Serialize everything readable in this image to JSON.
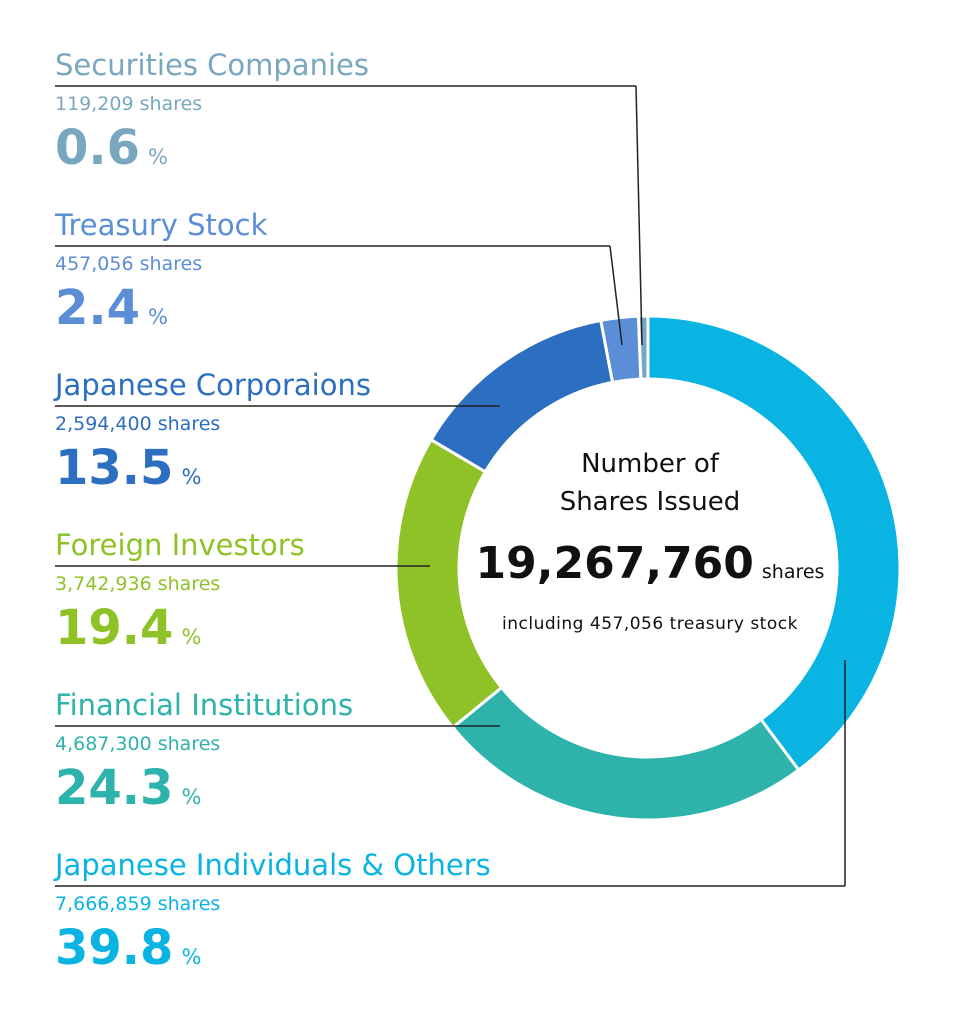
{
  "chart_data": {
    "type": "pie",
    "donut": true,
    "center": {
      "title_line1": "Number of",
      "title_line2": "Shares Issued",
      "total": "19,267,760",
      "total_unit": "shares",
      "note": "including 457,056 treasury stock"
    },
    "categories": [
      "Japanese Individuals & Others",
      "Financial Institutions",
      "Foreign Investors",
      "Japanese Corporaions",
      "Treasury Stock",
      "Securities Companies"
    ],
    "values": [
      39.8,
      24.3,
      19.4,
      13.5,
      2.4,
      0.6
    ],
    "shares": [
      "7,666,859 shares",
      "4,687,300 shares",
      "3,742,936 shares",
      "2,594,400 shares",
      "457,056 shares",
      "119,209 shares"
    ],
    "pct_labels": [
      "39.8",
      "24.3",
      "19.4",
      "13.5",
      "2.4",
      "0.6"
    ],
    "pct_unit": "%",
    "colors": [
      "#0ab4e2",
      "#2db3ab",
      "#8fc227",
      "#2c6ebf",
      "#5b8ed6",
      "#79a7bf"
    ]
  }
}
